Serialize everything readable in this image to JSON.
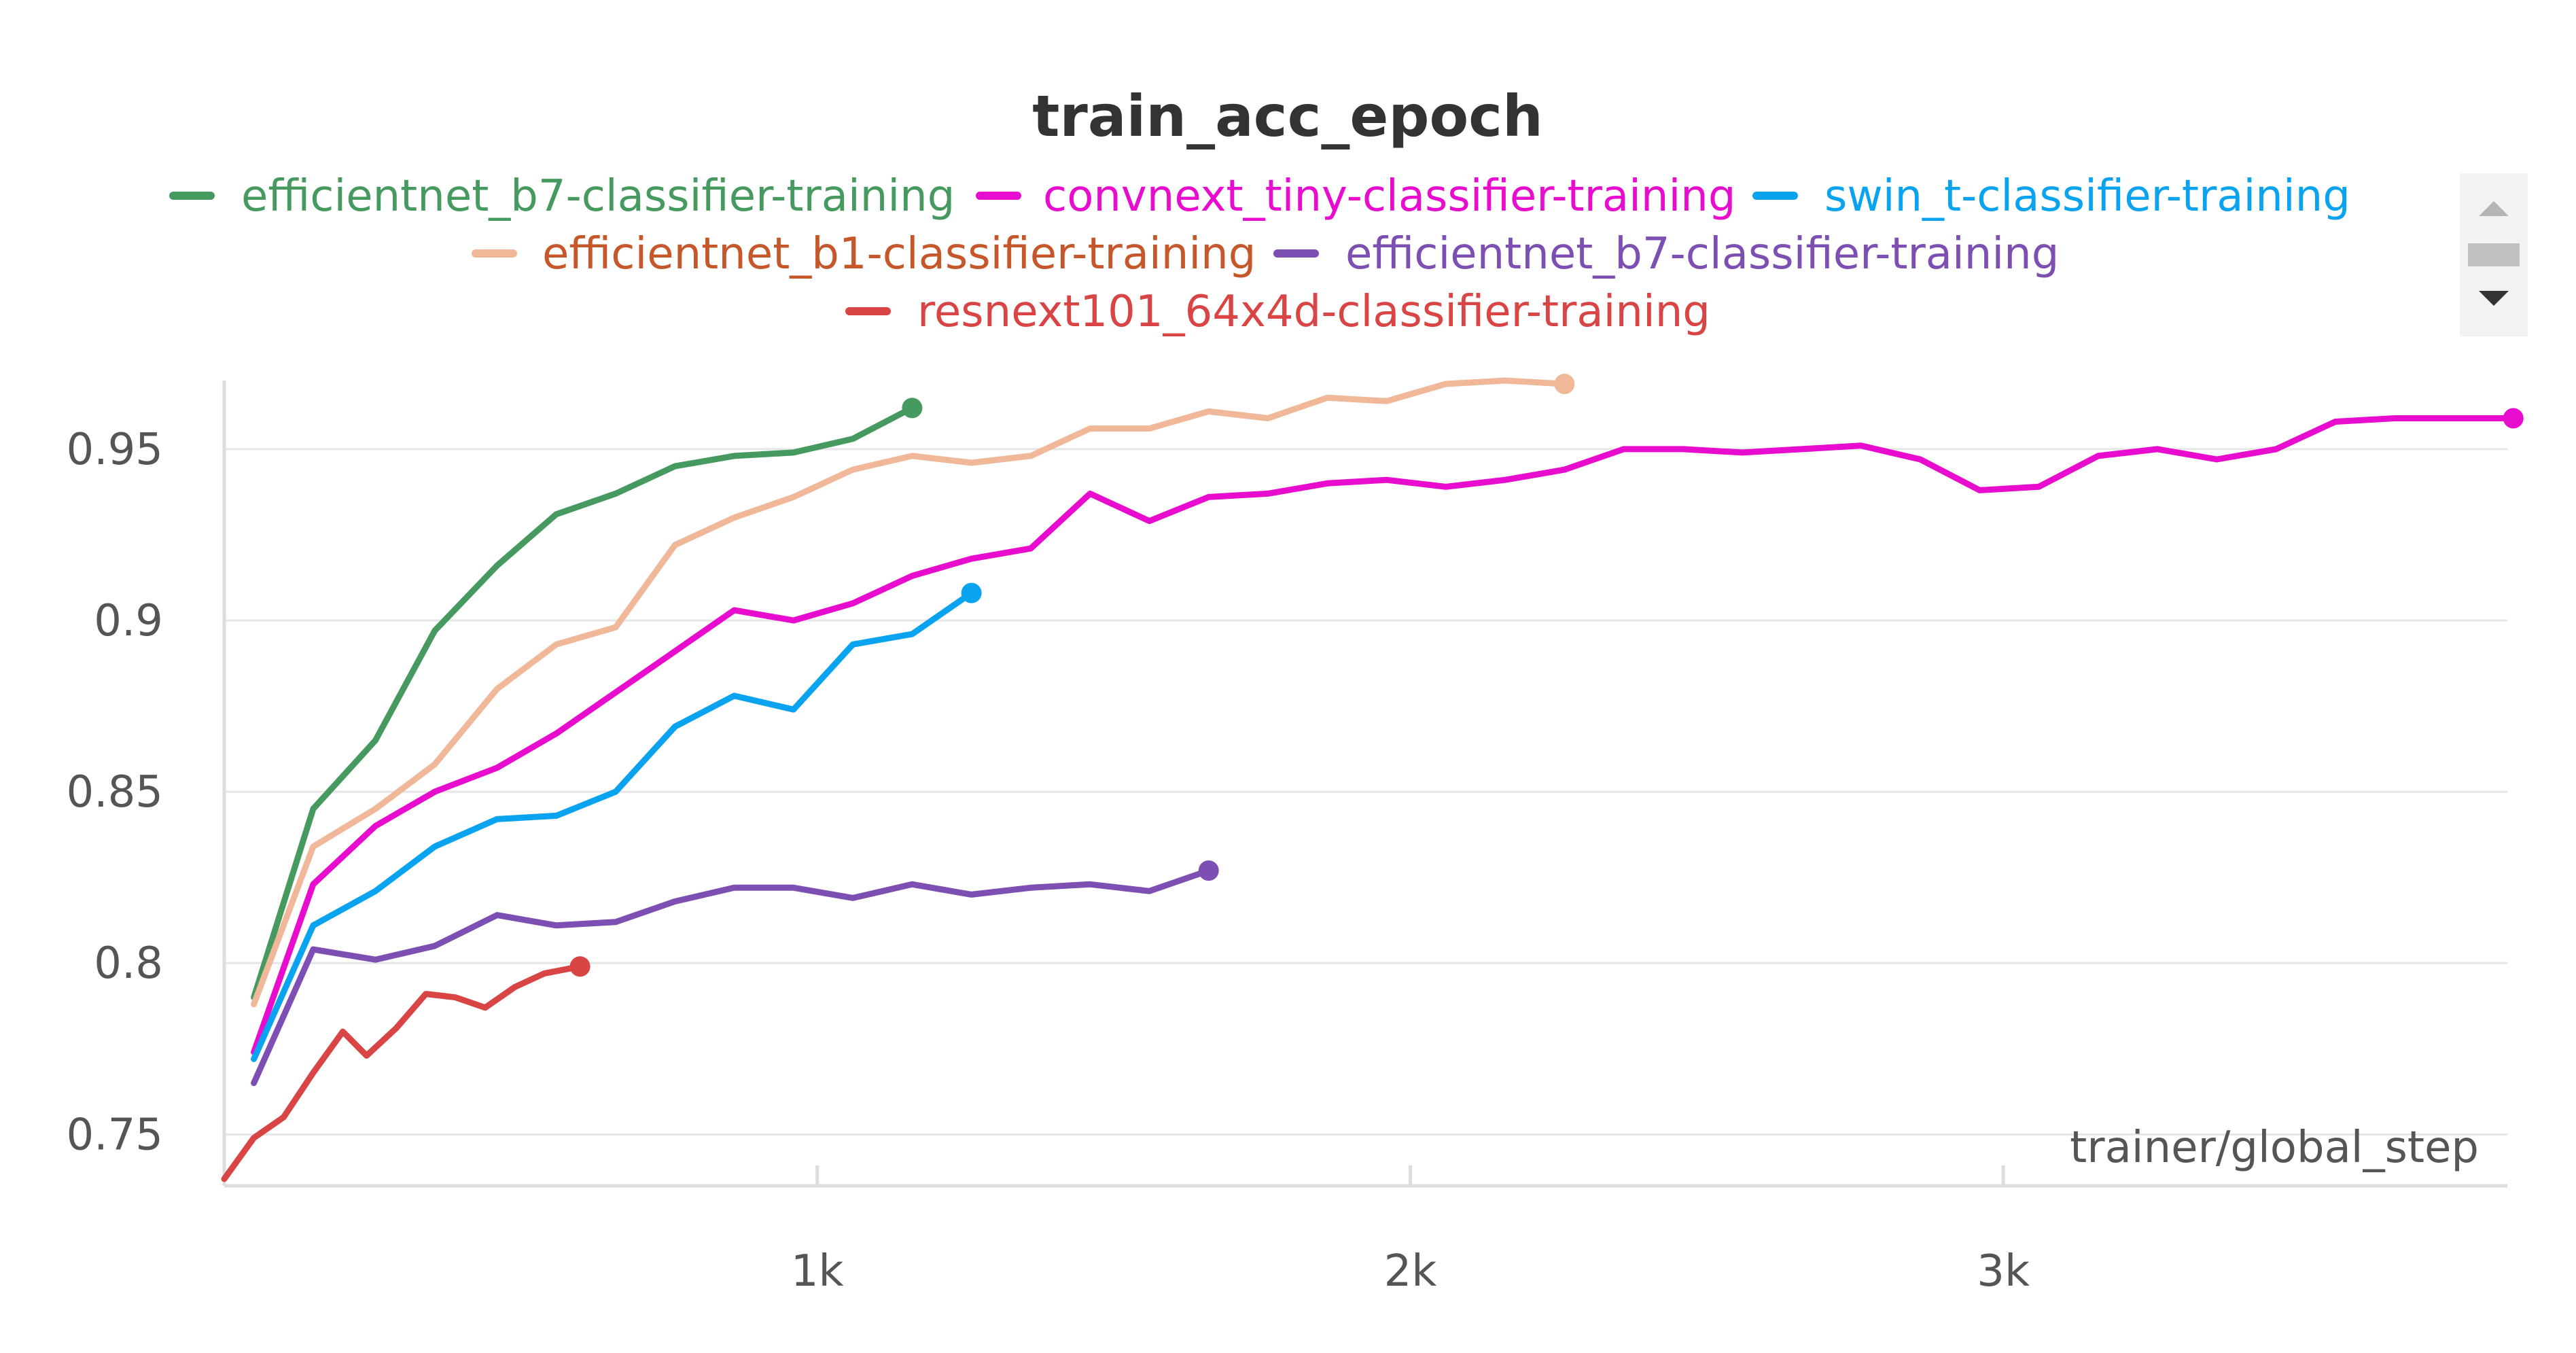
{
  "chart_data": {
    "type": "line",
    "title": "train_acc_epoch",
    "xlabel": "trainer/global_step",
    "ylabel": "",
    "xlim": [
      0,
      3850
    ],
    "ylim": [
      0.735,
      0.97
    ],
    "x_ticks": [
      {
        "value": 1000,
        "label": "1k"
      },
      {
        "value": 2000,
        "label": "2k"
      },
      {
        "value": 3000,
        "label": "3k"
      }
    ],
    "y_ticks": [
      {
        "value": 0.75,
        "label": "0.75"
      },
      {
        "value": 0.8,
        "label": "0.8"
      },
      {
        "value": 0.85,
        "label": "0.85"
      },
      {
        "value": 0.9,
        "label": "0.9"
      },
      {
        "value": 0.95,
        "label": "0.95"
      }
    ],
    "grid": true,
    "legend_position": "top",
    "series": [
      {
        "name": "efficientnet_b7-classifier-training",
        "color": "#479a5f",
        "x": [
          50,
          150,
          255,
          355,
          460,
          560,
          660,
          760,
          860,
          960,
          1060,
          1160
        ],
        "y": [
          0.79,
          0.845,
          0.865,
          0.897,
          0.916,
          0.931,
          0.937,
          0.945,
          0.948,
          0.949,
          0.953,
          0.962
        ]
      },
      {
        "name": "convnext_tiny-classifier-training",
        "color": "#e80ccf",
        "x": [
          50,
          150,
          255,
          355,
          460,
          560,
          660,
          760,
          860,
          960,
          1060,
          1160,
          1260,
          1360,
          1460,
          1560,
          1660,
          1760,
          1860,
          1960,
          2060,
          2160,
          2260,
          2360,
          2460,
          2560,
          2660,
          2760,
          2860,
          2960,
          3060,
          3160,
          3260,
          3360,
          3460,
          3560,
          3660,
          3760,
          3860
        ],
        "y": [
          0.774,
          0.823,
          0.84,
          0.85,
          0.857,
          0.867,
          0.879,
          0.891,
          0.903,
          0.9,
          0.905,
          0.913,
          0.918,
          0.921,
          0.937,
          0.929,
          0.936,
          0.937,
          0.94,
          0.941,
          0.939,
          0.941,
          0.944,
          0.95,
          0.95,
          0.949,
          0.95,
          0.951,
          0.947,
          0.938,
          0.939,
          0.948,
          0.95,
          0.947,
          0.95,
          0.958,
          0.959,
          0.959,
          0.959
        ]
      },
      {
        "name": "swin_t-classifier-training",
        "color": "#0aa3ef",
        "x": [
          50,
          150,
          255,
          355,
          460,
          560,
          660,
          760,
          860,
          960,
          1060,
          1160,
          1260
        ],
        "y": [
          0.772,
          0.811,
          0.821,
          0.834,
          0.842,
          0.843,
          0.85,
          0.869,
          0.878,
          0.874,
          0.893,
          0.896,
          0.908
        ]
      },
      {
        "name": "efficientnet_b1-classifier-training",
        "color": "#f0b899",
        "x": [
          50,
          150,
          255,
          355,
          460,
          560,
          660,
          760,
          860,
          960,
          1060,
          1160,
          1260,
          1360,
          1460,
          1560,
          1660,
          1760,
          1860,
          1960,
          2060,
          2160,
          2260
        ],
        "y": [
          0.788,
          0.834,
          0.845,
          0.858,
          0.88,
          0.893,
          0.898,
          0.922,
          0.93,
          0.936,
          0.944,
          0.948,
          0.946,
          0.948,
          0.956,
          0.956,
          0.961,
          0.959,
          0.965,
          0.964,
          0.969,
          0.97,
          0.969
        ]
      },
      {
        "name": "efficientnet_b7-classifier-training",
        "color": "#7e4fb3",
        "x": [
          50,
          150,
          255,
          355,
          460,
          560,
          660,
          760,
          860,
          960,
          1060,
          1160,
          1260,
          1360,
          1460,
          1560,
          1660
        ],
        "y": [
          0.765,
          0.804,
          0.801,
          0.805,
          0.814,
          0.811,
          0.812,
          0.818,
          0.822,
          0.822,
          0.819,
          0.823,
          0.82,
          0.822,
          0.823,
          0.821,
          0.827
        ]
      },
      {
        "name": "resnext101_64x4d-classifier-training",
        "color": "#d94545",
        "x": [
          0,
          50,
          100,
          150,
          200,
          240,
          290,
          340,
          390,
          440,
          490,
          540,
          600
        ],
        "y": [
          0.737,
          0.749,
          0.755,
          0.768,
          0.78,
          0.773,
          0.781,
          0.791,
          0.79,
          0.787,
          0.793,
          0.797,
          0.799
        ]
      }
    ],
    "legend_text_colors": [
      "#479a5f",
      "#e80ccf",
      "#0aa3ef",
      "#c6572a",
      "#7e4fb3",
      "#d94545"
    ]
  }
}
